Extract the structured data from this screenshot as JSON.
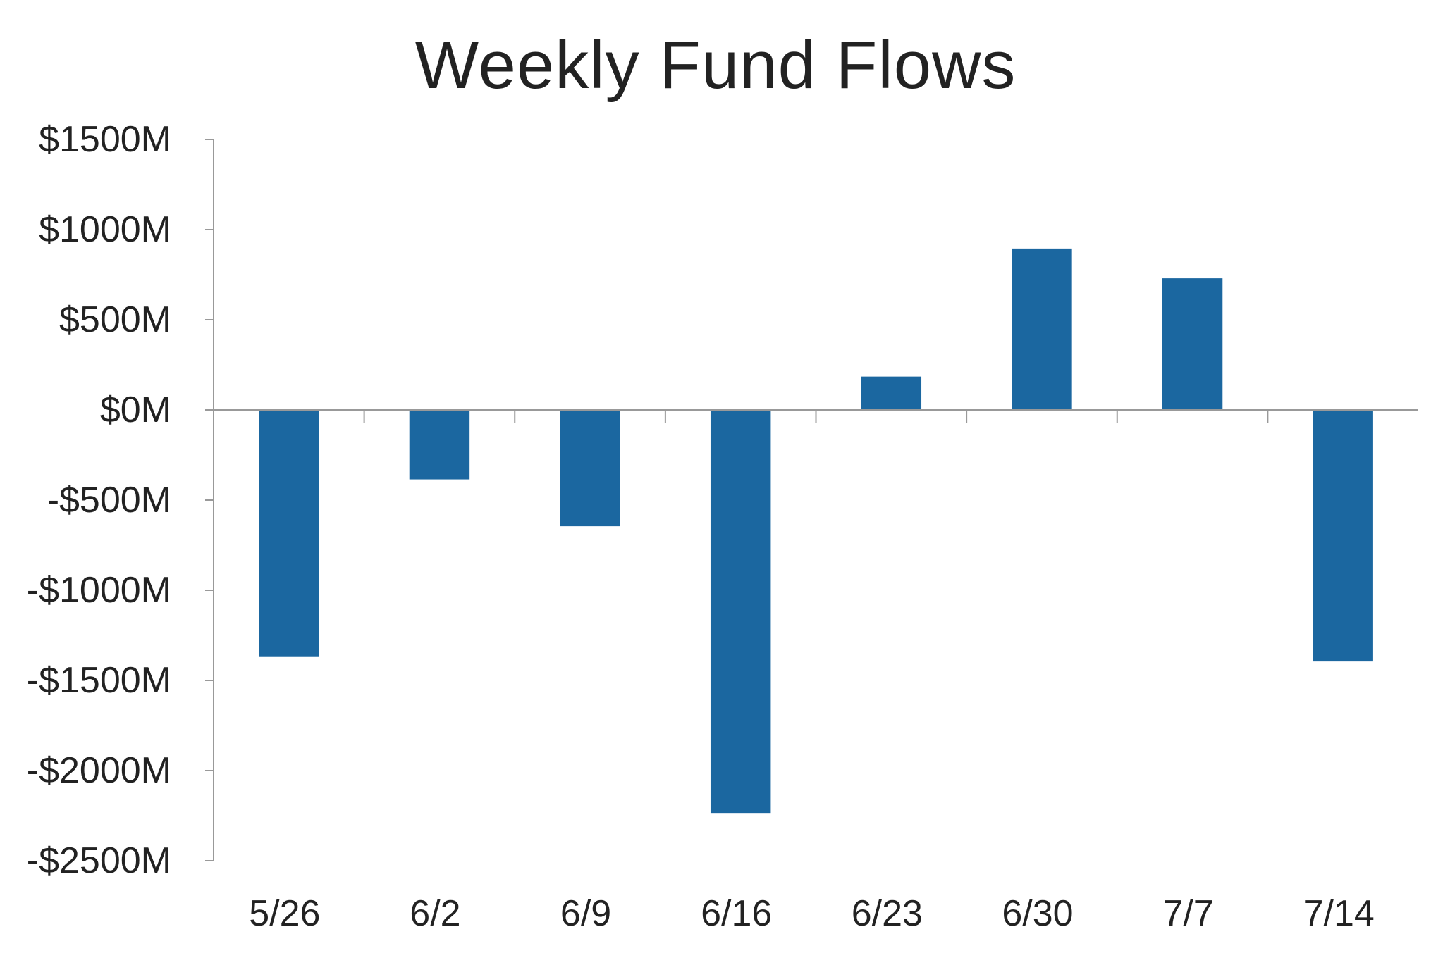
{
  "chart_data": {
    "type": "bar",
    "title": "Weekly Fund Flows",
    "xlabel": "",
    "ylabel": "",
    "categories": [
      "5/26",
      "6/2",
      "6/9",
      "6/16",
      "6/23",
      "6/30",
      "7/7",
      "7/14"
    ],
    "values": [
      -1370,
      -385,
      -645,
      -2235,
      185,
      895,
      730,
      -1395
    ],
    "ylim": [
      -2500,
      1500
    ],
    "yticks": [
      1500,
      1000,
      500,
      0,
      -500,
      -1000,
      -1500,
      -2000,
      -2500
    ],
    "ytick_labels": [
      "$1500M",
      "$1000M",
      "$500M",
      "$0M",
      "-$500M",
      "-$1000M",
      "-$1500M",
      "-$2000M",
      "-$2500M"
    ],
    "grid": false,
    "legend": "none",
    "bar_color": "#1b67a0",
    "axis_color": "#999999",
    "text_color": "#222222"
  }
}
